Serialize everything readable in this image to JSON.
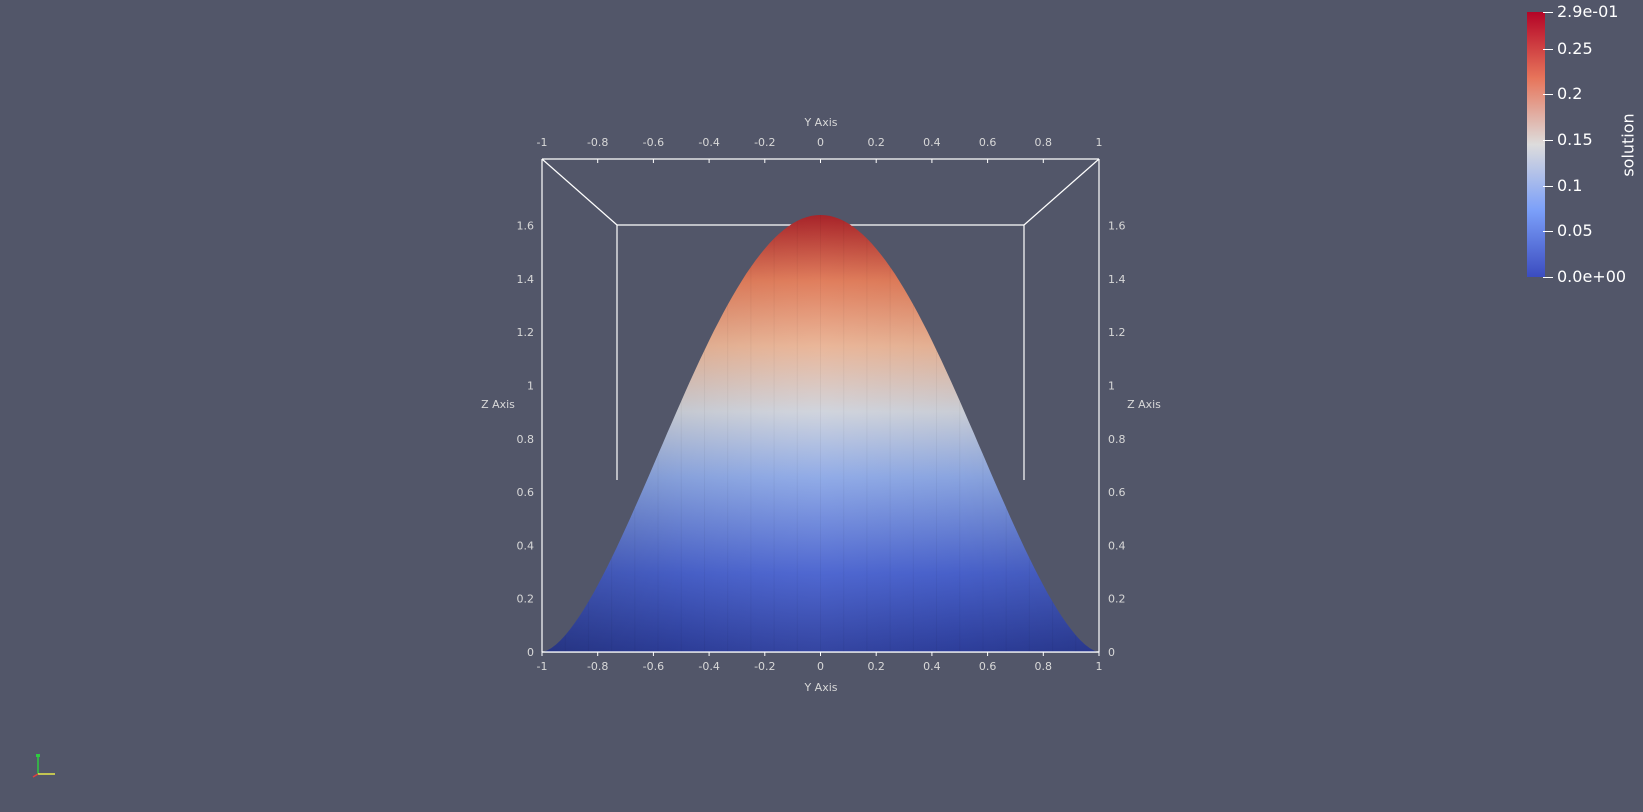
{
  "axes": {
    "y_title_top": "Y Axis",
    "y_title_bottom": "Y Axis",
    "z_title_left": "Z Axis",
    "z_title_right": "Z Axis",
    "y_ticks": [
      "-1",
      "-0.8",
      "-0.6",
      "-0.4",
      "-0.2",
      "0",
      "0.2",
      "0.4",
      "0.6",
      "0.8",
      "1"
    ],
    "z_ticks": [
      "0",
      "0.2",
      "0.4",
      "0.6",
      "0.8",
      "1",
      "1.2",
      "1.4",
      "1.6"
    ]
  },
  "colorbar": {
    "title": "solution",
    "labels": [
      "2.9e-01",
      "0.25",
      "0.2",
      "0.15",
      "0.1",
      "0.05",
      "0.0e+00"
    ],
    "colors": {
      "max": "#b40426",
      "upper": "#e7755b",
      "mid": "#dddcdc",
      "lower": "#7b9ff9",
      "min": "#3b4cc0"
    }
  },
  "background": "#525669"
}
